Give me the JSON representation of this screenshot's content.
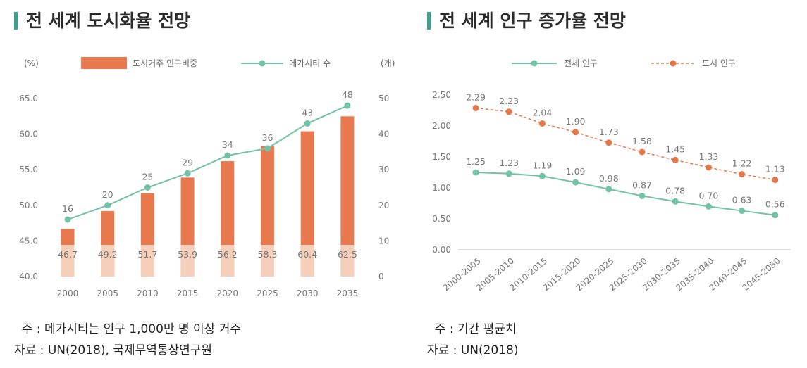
{
  "colors": {
    "accent": "#3aa38f",
    "bar": "#e8784d",
    "line_total": "#72c1a9",
    "line_urban": "#e3784a",
    "bar_band": "#f7d8c7"
  },
  "left": {
    "title": "전 세계 도시화율 전망",
    "note": "  주 : 메가시티는 인구 1,000만 명 이상 거주",
    "source": "자료 : UN(2018), 국제무역통상연구원"
  },
  "right": {
    "title": "전 세계 인구 증가율 전망",
    "note": "  주 : 기간 평균치",
    "source": "자료 : UN(2018)"
  },
  "chart_data": [
    {
      "type": "bar",
      "left_unit": "(%)",
      "right_unit": "(개)",
      "categories": [
        "2000",
        "2005",
        "2010",
        "2015",
        "2020",
        "2025",
        "2030",
        "2035"
      ],
      "left_ticks": [
        "65.0",
        "60.0",
        "55.0",
        "50.0",
        "45.0",
        "40.0"
      ],
      "right_ticks": [
        "50",
        "40",
        "30",
        "20",
        "10",
        "0"
      ],
      "ylim": [
        40,
        65
      ],
      "y2lim": [
        0,
        50
      ],
      "grid": false,
      "legend": "top",
      "series": [
        {
          "name": "도시거주 인구비중",
          "type": "bar",
          "axis": "left",
          "values": [
            46.7,
            49.2,
            51.7,
            53.9,
            56.2,
            58.3,
            60.4,
            62.5
          ],
          "labels": [
            "46.7",
            "49.2",
            "51.7",
            "53.9",
            "56.2",
            "58.3",
            "60.4",
            "62.5"
          ]
        },
        {
          "name": "메가시티 수",
          "type": "line",
          "axis": "right",
          "values": [
            16,
            20,
            25,
            29,
            34,
            36,
            43,
            48
          ],
          "labels": [
            "16",
            "20",
            "25",
            "29",
            "34",
            "36",
            "43",
            "48"
          ]
        }
      ]
    },
    {
      "type": "line",
      "categories": [
        "2000-2005",
        "2005-2010",
        "2010-2015",
        "2015-2020",
        "2020-2025",
        "2025-2030",
        "2030-2035",
        "2035-2040",
        "2040-2045",
        "2045-2050"
      ],
      "y_ticks": [
        "2.50",
        "2.00",
        "1.50",
        "1.00",
        "0.50",
        "0.00"
      ],
      "ylim": [
        0,
        2.5
      ],
      "grid": false,
      "legend": "top",
      "series": [
        {
          "name": "전체 인구",
          "style": "solid",
          "values": [
            1.25,
            1.23,
            1.19,
            1.09,
            0.98,
            0.87,
            0.78,
            0.7,
            0.63,
            0.56
          ],
          "labels": [
            "1.25",
            "1.23",
            "1.19",
            "1.09",
            "0.98",
            "0.87",
            "0.78",
            "0.70",
            "0.63",
            "0.56"
          ]
        },
        {
          "name": "도시 인구",
          "style": "dashed",
          "values": [
            2.29,
            2.23,
            2.04,
            1.9,
            1.73,
            1.58,
            1.45,
            1.33,
            1.22,
            1.13
          ],
          "labels": [
            "2.29",
            "2.23",
            "2.04",
            "1.90",
            "1.73",
            "1.58",
            "1.45",
            "1.33",
            "1.22",
            "1.13"
          ]
        }
      ]
    }
  ]
}
